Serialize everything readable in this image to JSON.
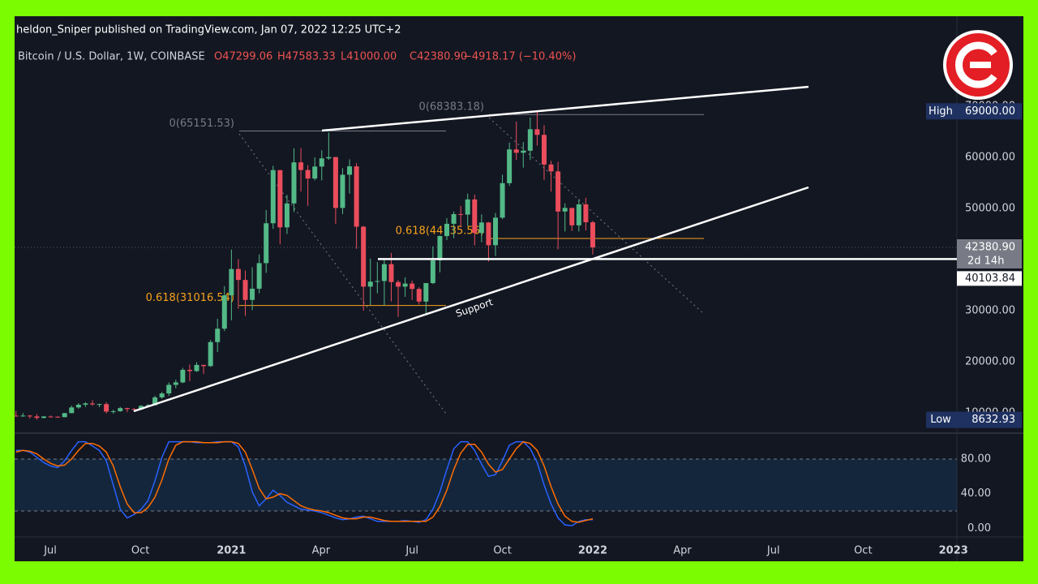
{
  "header": {
    "publisher": "heldon_Sniper published on TradingView.com, Jan 07, 2022 12:25 UTC+2",
    "symbol": "Bitcoin / U.S. Dollar, 1W, COINBASE",
    "open": "O47299.06",
    "high": "H47583.33",
    "low": "L41000.00",
    "close": "C42380.90",
    "change": "−4918.17 (−10.40%)"
  },
  "chart_data": [
    {
      "type": "candlestick",
      "up_color": "#53b987",
      "down_color": "#eb4d5c",
      "open": [
        9450,
        9380,
        9470,
        9300,
        9010,
        9290,
        9250,
        9160,
        9950,
        11060,
        11590,
        11850,
        11660,
        11710,
        10250,
        10330,
        10930,
        10730,
        10670,
        11370,
        11500,
        13030,
        13800,
        15480,
        15960,
        18420,
        18180,
        19380,
        19150,
        23850,
        26470,
        33000,
        38150,
        36010,
        32100,
        34300,
        39300,
        47100,
        57500,
        46300,
        50980,
        59020,
        57520,
        55850,
        58200,
        59800,
        60050,
        50100,
        56600,
        58240,
        46430,
        34700,
        35680,
        35800,
        39100,
        35600,
        34700,
        35300,
        34250,
        31780,
        35400,
        39850,
        44600,
        47000,
        48900,
        48800,
        51770,
        45200,
        47250,
        42800,
        48200,
        54950,
        61550,
        60900,
        61300,
        65500,
        64400,
        58600,
        57250,
        49400,
        50100,
        46700,
        50800,
        47299.06
      ],
      "high": [
        10380,
        9990,
        9590,
        9770,
        9380,
        9470,
        9320,
        9990,
        11420,
        11900,
        12080,
        12470,
        11800,
        12090,
        10600,
        11180,
        10990,
        10960,
        11490,
        11730,
        13350,
        14100,
        15960,
        16480,
        18800,
        19480,
        19920,
        19420,
        24260,
        28400,
        34800,
        41950,
        40100,
        37850,
        38500,
        41000,
        49700,
        58350,
        57500,
        52640,
        61780,
        61800,
        58500,
        60000,
        61400,
        64854,
        60100,
        57900,
        59600,
        58900,
        46600,
        40200,
        39500,
        40100,
        41300,
        36000,
        36500,
        35900,
        34600,
        35400,
        42600,
        44700,
        48100,
        49400,
        50500,
        52900,
        52700,
        48850,
        47350,
        49100,
        56600,
        62900,
        67000,
        63000,
        67800,
        69000,
        66300,
        59300,
        59100,
        51000,
        50100,
        51800,
        52100,
        47583.33
      ],
      "low": [
        9270,
        9230,
        8900,
        8632.93,
        8900,
        9080,
        9030,
        9140,
        9920,
        10800,
        11150,
        11380,
        11130,
        9900,
        9850,
        10200,
        10140,
        10410,
        10530,
        11200,
        11420,
        12760,
        13300,
        14800,
        15800,
        16200,
        18000,
        17600,
        19000,
        21900,
        26000,
        28100,
        30400,
        29000,
        30100,
        33400,
        37400,
        46000,
        43000,
        45000,
        49300,
        53300,
        50500,
        55500,
        55500,
        59500,
        47000,
        48900,
        52900,
        42100,
        30000,
        31100,
        33400,
        31000,
        31800,
        28800,
        32700,
        32100,
        31200,
        29300,
        35200,
        37500,
        43800,
        44200,
        46400,
        46600,
        42800,
        43400,
        39600,
        40700,
        47900,
        54400,
        59500,
        58000,
        59500,
        62300,
        55600,
        53300,
        42000,
        45500,
        45600,
        45500,
        45700,
        41000
      ],
      "close": [
        9380,
        9470,
        9300,
        9010,
        9290,
        9250,
        9160,
        9950,
        11060,
        11590,
        11850,
        11660,
        11710,
        10250,
        10330,
        10930,
        10730,
        10670,
        11370,
        11500,
        13030,
        13800,
        15480,
        15960,
        18420,
        18180,
        19380,
        19150,
        23850,
        26470,
        33000,
        38150,
        36010,
        32100,
        34300,
        39300,
        47100,
        57500,
        46300,
        50980,
        59020,
        57520,
        55850,
        58200,
        59800,
        60050,
        50100,
        56600,
        58240,
        46430,
        34700,
        35680,
        35800,
        39100,
        35600,
        34700,
        35300,
        34250,
        31780,
        35400,
        39850,
        44600,
        47000,
        48900,
        48800,
        51770,
        45200,
        47250,
        42800,
        48200,
        54950,
        61550,
        60900,
        61300,
        65500,
        64400,
        58600,
        57250,
        49400,
        50100,
        46700,
        50800,
        47300,
        42380.9
      ],
      "ylim": [
        6190,
        87620
      ],
      "yticks": [
        {
          "value": 10000,
          "label": "10000.00"
        },
        {
          "value": 20000,
          "label": "20000.00"
        },
        {
          "value": 30000,
          "label": "30000.00"
        },
        {
          "value": 40000,
          "label": "40000.00"
        },
        {
          "value": 50000,
          "label": "50000.00"
        },
        {
          "value": 60000,
          "label": "60000.00"
        },
        {
          "value": 70000,
          "label": "70000.00"
        }
      ],
      "xlim": [
        -0.2,
        135.4
      ],
      "xticks": [
        {
          "value": 4.94,
          "label": "Jul"
        },
        {
          "value": 17.9,
          "label": "Oct"
        },
        {
          "value": 31.0,
          "label": "2021"
        },
        {
          "value": 43.9,
          "label": "Apr"
        },
        {
          "value": 57.0,
          "label": "Jul"
        },
        {
          "value": 70.0,
          "label": "Oct"
        },
        {
          "value": 83.0,
          "label": "2022"
        },
        {
          "value": 95.9,
          "label": "Apr"
        },
        {
          "value": 109.0,
          "label": "Jul"
        },
        {
          "value": 121.9,
          "label": "Oct"
        },
        {
          "value": 134.9,
          "label": "2023"
        }
      ],
      "grid": false,
      "fib_levels": [
        {
          "label": "0(65151.53)",
          "value": 65151.53,
          "color": "#787b86"
        },
        {
          "label": "0.618(31016.54)",
          "value": 31016.54,
          "color": "#f7a21b"
        },
        {
          "label": "0(68383.18)",
          "value": 68383.18,
          "color": "#787b86"
        },
        {
          "label": "0.618(44135.56)",
          "value": 44135.56,
          "color": "#f7a21b"
        }
      ],
      "markers": [
        {
          "name": "High",
          "value": 69000,
          "label": "69000.00"
        },
        {
          "name": "Low",
          "value": 8632.93,
          "label": "8632.93"
        }
      ],
      "last_price": {
        "value": 42380.9,
        "label": "42380.90",
        "countdown": "2d 14h"
      },
      "horizontal_line": {
        "value": 40103.84,
        "label": "40103.84"
      },
      "annotation": "Support"
    },
    {
      "type": "line",
      "series": [
        {
          "color": "#2962ff",
          "values": [
            90,
            90,
            88,
            82,
            76,
            72,
            70,
            78,
            90,
            100,
            100,
            95,
            90,
            78,
            50,
            22,
            12,
            16,
            22,
            32,
            55,
            82,
            100,
            100,
            100,
            100,
            99,
            99,
            99,
            100,
            100,
            100,
            94,
            72,
            42,
            26,
            34,
            44,
            38,
            30,
            26,
            22,
            21,
            20,
            18,
            15,
            12,
            10,
            11,
            13,
            14,
            11,
            8,
            8,
            8,
            8,
            9,
            8,
            7,
            10,
            22,
            42,
            68,
            92,
            100,
            100,
            90,
            74,
            60,
            62,
            78,
            96,
            100,
            100,
            92,
            76,
            50,
            28,
            12,
            4,
            3,
            8,
            10,
            10
          ]
        },
        {
          "color": "#ff6d00",
          "values": [
            88,
            90,
            89,
            86,
            80,
            75,
            72,
            73,
            80,
            90,
            98,
            98,
            95,
            88,
            72,
            48,
            28,
            18,
            18,
            24,
            36,
            56,
            80,
            96,
            100,
            100,
            100,
            99,
            99,
            99,
            100,
            100,
            98,
            88,
            68,
            46,
            34,
            36,
            40,
            38,
            32,
            26,
            23,
            21,
            20,
            18,
            15,
            12,
            11,
            11,
            13,
            13,
            11,
            9,
            8,
            8,
            8,
            8,
            8,
            8,
            13,
            25,
            44,
            68,
            87,
            97,
            97,
            88,
            74,
            65,
            68,
            80,
            92,
            100,
            98,
            90,
            72,
            48,
            28,
            14,
            8,
            7,
            9,
            11
          ]
        }
      ],
      "ylim": [
        -10,
        109
      ],
      "yticks": [
        {
          "value": 0,
          "label": "0.00"
        },
        {
          "value": 40,
          "label": "40.00"
        },
        {
          "value": 80,
          "label": "80.00"
        }
      ],
      "band": [
        20,
        80
      ]
    }
  ]
}
